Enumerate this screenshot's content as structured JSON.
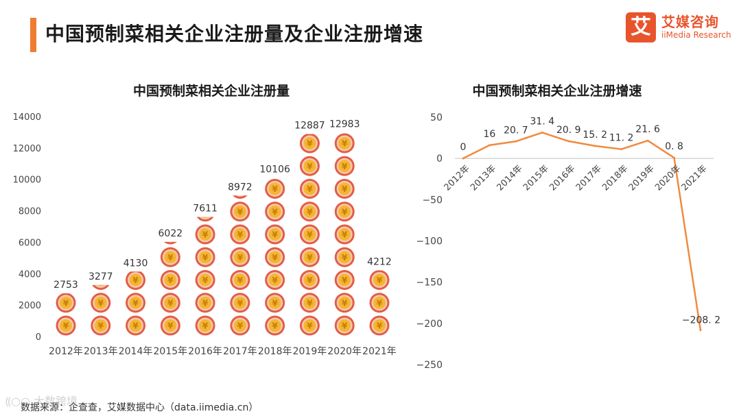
{
  "page": {
    "title": "中国预制菜相关企业注册量及企业注册增速"
  },
  "logo": {
    "mark": "艾",
    "name_cn": "艾媒咨询",
    "name_en": "iiMedia Research"
  },
  "source": "数据来源：企查查，艾媒数据中心（data.iimedia.cn）",
  "watermark": "⸨○○ 大数跨境",
  "colors": {
    "accent": "#f07c33",
    "coin_outer": "#e25d45",
    "coin_ring": "#f7c8b4",
    "coin_inner": "#f5b52e",
    "coin_symbol": "#c77d10",
    "line": "#f08a3e",
    "axis": "#bfbfbf",
    "text": "#444444"
  },
  "chart_data": [
    {
      "type": "bar",
      "title": "中国预制菜相关企业注册量",
      "categories": [
        "2012年",
        "2013年",
        "2014年",
        "2015年",
        "2016年",
        "2017年",
        "2018年",
        "2019年",
        "2020年",
        "2021年"
      ],
      "values": [
        2753,
        3277,
        4130,
        6022,
        7611,
        8972,
        10106,
        12887,
        12983,
        4212
      ],
      "data_labels": [
        "2753",
        "3277",
        "4130",
        "6022",
        "7611",
        "8972",
        "10106",
        "12887",
        "12983",
        "4212"
      ],
      "ylim": [
        0,
        14000
      ],
      "yticks": [
        "0",
        "2000",
        "4000",
        "6000",
        "8000",
        "10000",
        "12000",
        "14000"
      ],
      "ytick_values": [
        0,
        2000,
        4000,
        6000,
        8000,
        10000,
        12000,
        14000
      ],
      "unit_per_icon": 1450,
      "icon": "yen-coin-icon",
      "xlabel": "",
      "ylabel": "",
      "grid": false
    },
    {
      "type": "line",
      "title": "中国预制菜相关企业注册增速",
      "categories": [
        "2012年",
        "2013年",
        "2014年",
        "2015年",
        "2016年",
        "2017年",
        "2018年",
        "2019年",
        "2020年",
        "2021年"
      ],
      "values": [
        0,
        16,
        20.7,
        31.4,
        20.9,
        15.2,
        11.2,
        21.6,
        0.8,
        -208.2
      ],
      "data_labels": [
        "0",
        "16",
        "20. 7",
        "31. 4",
        "20. 9",
        "15. 2",
        "11. 2",
        "21. 6",
        "0. 8",
        "−208. 2"
      ],
      "ylim": [
        -250,
        50
      ],
      "yticks": [
        "50",
        "0",
        "−50",
        "−100",
        "−150",
        "−200",
        "−250"
      ],
      "ytick_values": [
        50,
        0,
        -50,
        -100,
        -150,
        -200,
        -250
      ],
      "xlabel": "",
      "ylabel": "",
      "grid": false
    }
  ]
}
